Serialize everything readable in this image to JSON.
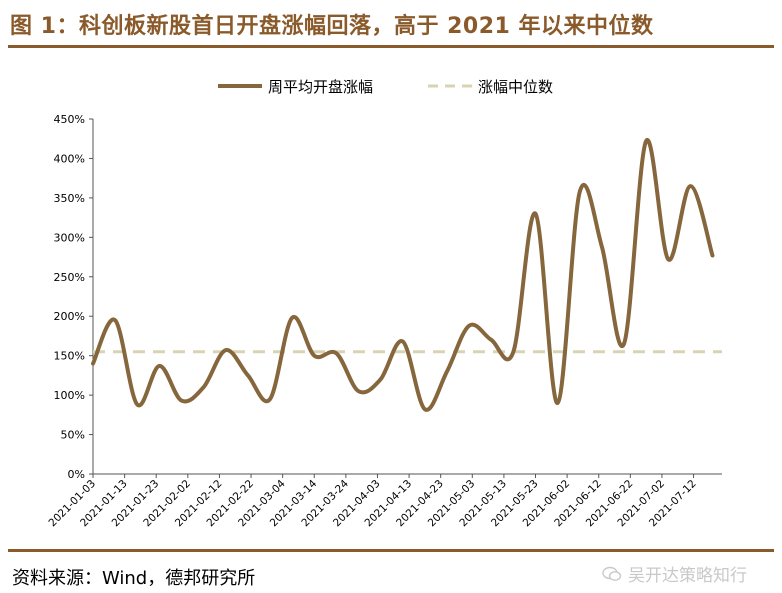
{
  "header": {
    "title": "图 1：科创板新股首日开盘涨幅回落，高于 2021 年以来中位数"
  },
  "footer": {
    "source": "资料来源：Wind，德邦研究所"
  },
  "watermark": {
    "text": "吴开达策略知行",
    "icon": "wechat-icon"
  },
  "colors": {
    "accent": "#8b5a2b",
    "series_line": "#86663c",
    "median_line": "#d9d3b3"
  },
  "chart_data": {
    "type": "line",
    "title": "",
    "xlabel": "",
    "ylabel": "",
    "ylim": [
      0,
      450
    ],
    "y_ticks": [
      "0%",
      "50%",
      "100%",
      "150%",
      "200%",
      "250%",
      "300%",
      "350%",
      "400%",
      "450%"
    ],
    "x_labels": [
      "2021-01-03",
      "2021-01-13",
      "2021-01-23",
      "2021-02-02",
      "2021-02-12",
      "2021-02-22",
      "2021-03-04",
      "2021-03-14",
      "2021-03-24",
      "2021-04-03",
      "2021-04-13",
      "2021-04-23",
      "2021-05-03",
      "2021-05-13",
      "2021-05-23",
      "2021-06-02",
      "2021-06-12",
      "2021-06-22",
      "2021-07-02",
      "2021-07-12"
    ],
    "legend": {
      "placement": "top-center"
    },
    "grid": false,
    "series": [
      {
        "name": "周平均开盘涨幅",
        "style": "solid",
        "x": [
          "2021-01-03",
          "2021-01-10",
          "2021-01-17",
          "2021-01-24",
          "2021-01-31",
          "2021-02-07",
          "2021-02-14",
          "2021-02-21",
          "2021-02-28",
          "2021-03-07",
          "2021-03-14",
          "2021-03-21",
          "2021-03-28",
          "2021-04-04",
          "2021-04-11",
          "2021-04-18",
          "2021-04-25",
          "2021-05-02",
          "2021-05-09",
          "2021-05-16",
          "2021-05-23",
          "2021-05-30",
          "2021-06-06",
          "2021-06-13",
          "2021-06-20",
          "2021-06-27",
          "2021-07-04",
          "2021-07-11",
          "2021-07-18"
        ],
        "values": [
          140,
          195,
          88,
          137,
          93,
          110,
          157,
          125,
          95,
          198,
          150,
          153,
          105,
          120,
          168,
          82,
          130,
          188,
          170,
          155,
          330,
          90,
          358,
          288,
          165,
          422,
          272,
          365,
          277
        ]
      },
      {
        "name": "涨幅中位数",
        "style": "dashed",
        "values": [
          155
        ]
      }
    ]
  }
}
